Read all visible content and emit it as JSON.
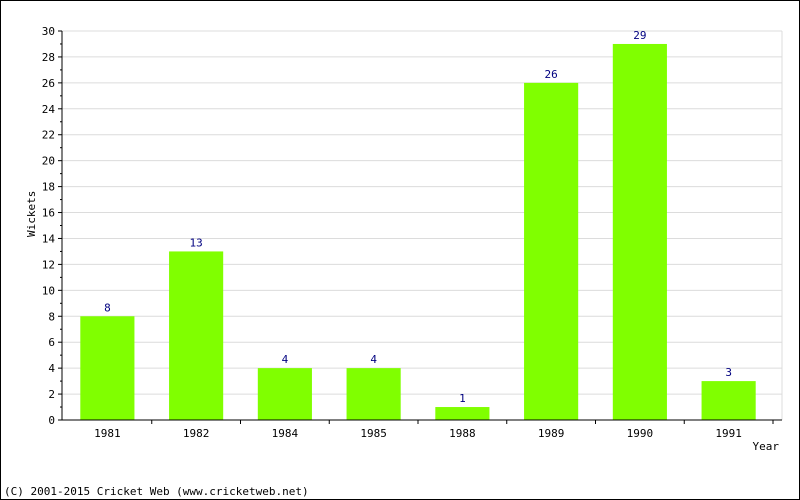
{
  "chart_data": {
    "type": "bar",
    "categories": [
      "1981",
      "1982",
      "1984",
      "1985",
      "1988",
      "1989",
      "1990",
      "1991"
    ],
    "values": [
      8,
      13,
      4,
      4,
      1,
      26,
      29,
      3
    ],
    "title": "",
    "xlabel": "Year",
    "ylabel": "Wickets",
    "ylim": [
      0,
      30
    ],
    "ytick_step": 2,
    "grid": true,
    "bar_color": "#80ff00",
    "label_color": "#000080"
  },
  "footer": {
    "copyright": "(C) 2001-2015 Cricket Web (www.cricketweb.net)"
  }
}
